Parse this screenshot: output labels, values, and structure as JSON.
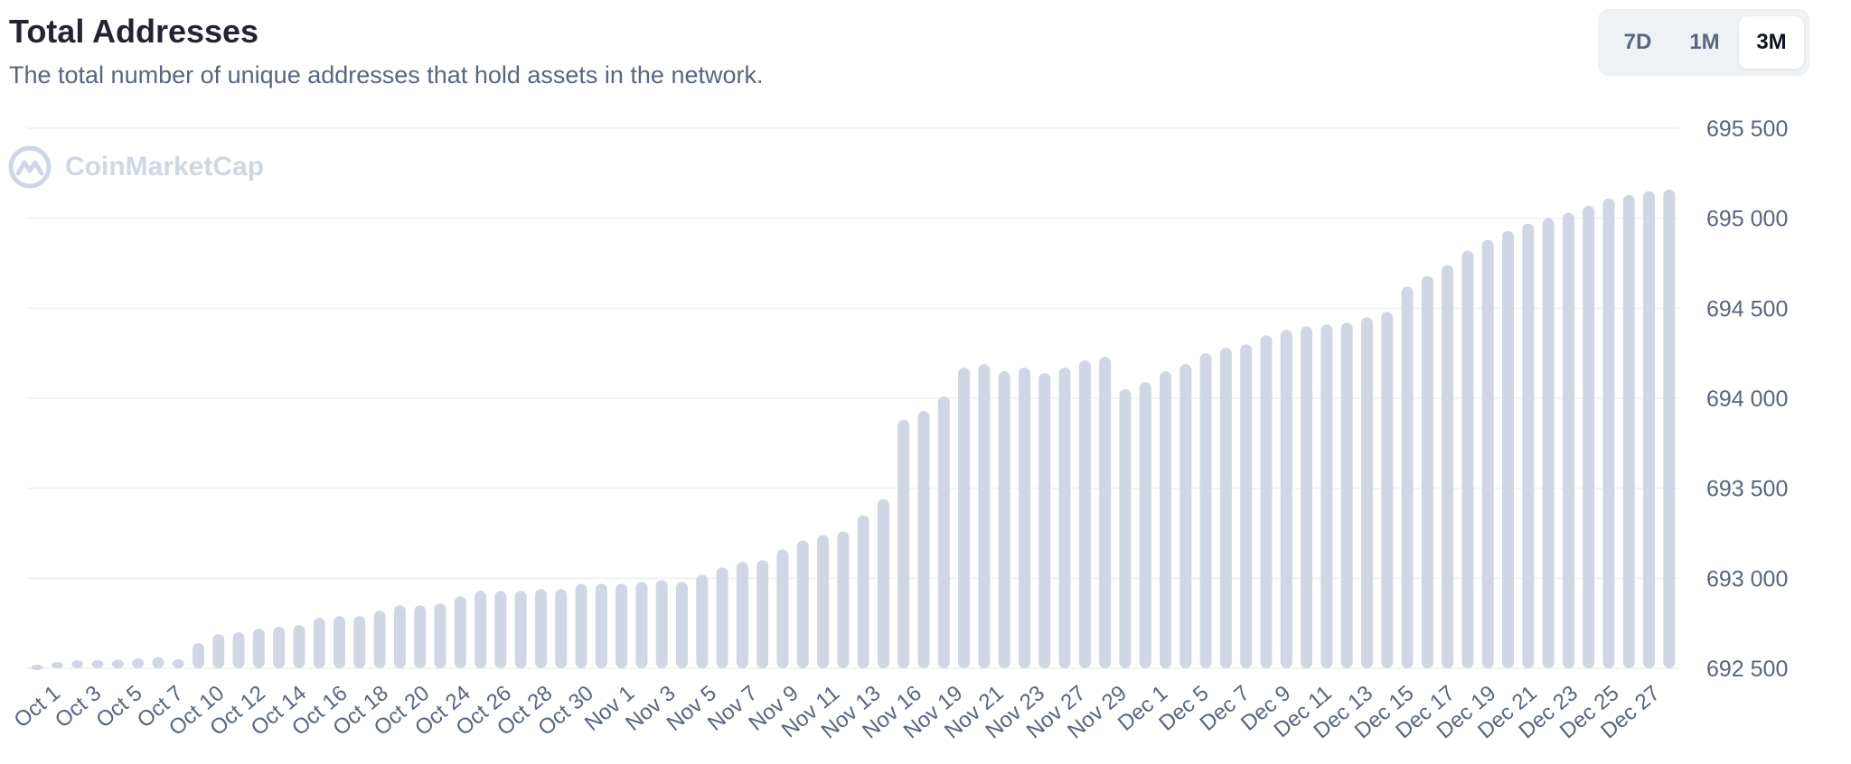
{
  "header": {
    "title": "Total Addresses",
    "subtitle": "The total number of unique addresses that hold assets in the network."
  },
  "range_selector": {
    "options": [
      "7D",
      "1M",
      "3M"
    ],
    "selected": "3M"
  },
  "watermark": {
    "brand": "CoinMarketCap"
  },
  "colors": {
    "bar": "#d0d6e4",
    "grid": "#eef0f3",
    "axis_text": "#58667e",
    "title": "#222531"
  },
  "chart_data": {
    "type": "bar",
    "title": "Total Addresses",
    "xlabel": "",
    "ylabel": "",
    "ylim": [
      692500,
      695500
    ],
    "yticks": [
      695500,
      695000,
      694500,
      694000,
      693500,
      693000,
      692500
    ],
    "ytick_labels": [
      "695 500",
      "695 000",
      "694 500",
      "694 000",
      "693 500",
      "693 000",
      "692 500"
    ],
    "grid": true,
    "categories": [
      "Oct 1",
      "Oct 2",
      "Oct 3",
      "Oct 4",
      "Oct 5",
      "Oct 6",
      "Oct 7",
      "Oct 8",
      "Oct 9",
      "Oct 10",
      "Oct 11",
      "Oct 12",
      "Oct 13",
      "Oct 14",
      "Oct 15",
      "Oct 16",
      "Oct 17",
      "Oct 18",
      "Oct 19",
      "Oct 20",
      "Oct 22",
      "Oct 24",
      "Oct 25",
      "Oct 26",
      "Oct 27",
      "Oct 28",
      "Oct 29",
      "Oct 30",
      "Oct 31",
      "Nov 1",
      "Nov 2",
      "Nov 3",
      "Nov 4",
      "Nov 5",
      "Nov 6",
      "Nov 7",
      "Nov 8",
      "Nov 9",
      "Nov 10",
      "Nov 11",
      "Nov 12",
      "Nov 13",
      "Nov 14",
      "Nov 16",
      "Nov 17",
      "Nov 19",
      "Nov 20",
      "Nov 21",
      "Nov 22",
      "Nov 23",
      "Nov 25",
      "Nov 27",
      "Nov 28",
      "Nov 29",
      "Nov 30",
      "Dec 1",
      "Dec 3",
      "Dec 5",
      "Dec 6",
      "Dec 7",
      "Dec 8",
      "Dec 9",
      "Dec 10",
      "Dec 11",
      "Dec 12",
      "Dec 13",
      "Dec 14",
      "Dec 15",
      "Dec 16",
      "Dec 17",
      "Dec 18",
      "Dec 19",
      "Dec 20",
      "Dec 21",
      "Dec 22",
      "Dec 23",
      "Dec 24",
      "Dec 25",
      "Dec 26",
      "Dec 27",
      "Dec 28",
      "Dec 29"
    ],
    "x_tick_labels": [
      "Oct 1",
      "Oct 3",
      "Oct 5",
      "Oct 7",
      "Oct 10",
      "Oct 12",
      "Oct 14",
      "Oct 16",
      "Oct 18",
      "Oct 20",
      "Oct 24",
      "Oct 26",
      "Oct 28",
      "Oct 30",
      "Nov 1",
      "Nov 3",
      "Nov 5",
      "Nov 7",
      "Nov 9",
      "Nov 11",
      "Nov 13",
      "Nov 16",
      "Nov 19",
      "Nov 21",
      "Nov 23",
      "Nov 27",
      "Nov 29",
      "Dec 1",
      "Dec 5",
      "Dec 7",
      "Dec 9",
      "Dec 11",
      "Dec 13",
      "Dec 15",
      "Dec 17",
      "Dec 19",
      "Dec 21",
      "Dec 23",
      "Dec 25",
      "Dec 27"
    ],
    "series": [
      {
        "name": "Total Addresses",
        "values": [
          692520,
          692535,
          692545,
          692545,
          692548,
          692555,
          692562,
          692550,
          692640,
          692690,
          692700,
          692720,
          692730,
          692740,
          692780,
          692790,
          692790,
          692820,
          692850,
          692850,
          692860,
          692900,
          692930,
          692930,
          692930,
          692940,
          692940,
          692970,
          692970,
          692970,
          692980,
          692990,
          692980,
          693020,
          693060,
          693090,
          693100,
          693160,
          693210,
          693240,
          693260,
          693350,
          693440,
          693880,
          693930,
          694010,
          694170,
          694190,
          694150,
          694170,
          694140,
          694170,
          694210,
          694230,
          694050,
          694090,
          694150,
          694190,
          694250,
          694280,
          694300,
          694350,
          694380,
          694400,
          694410,
          694420,
          694450,
          694480,
          694620,
          694680,
          694740,
          694820,
          694880,
          694930,
          694970,
          695000,
          695030,
          695070,
          695110,
          695130,
          695150,
          695160
        ]
      }
    ]
  }
}
